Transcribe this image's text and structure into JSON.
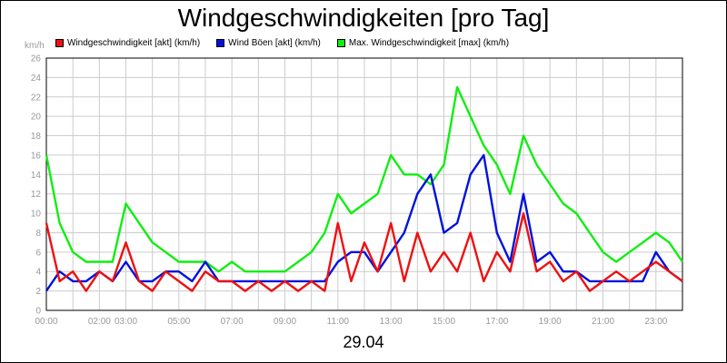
{
  "title": "Windgeschwindigkeiten [pro Tag]",
  "date_label": "29.04",
  "colors": {
    "current": "#ee1111",
    "gust": "#0011dd",
    "max": "#11ee11",
    "grid": "#cccccc",
    "axis_text": "#999999"
  },
  "chart_data": {
    "type": "line",
    "title": "Windgeschwindigkeiten [pro Tag]",
    "ylabel": "km/h",
    "xlabel": "29.04",
    "ylim": [
      0,
      26
    ],
    "xlim_hours": [
      0,
      24
    ],
    "y_ticks": [
      "0",
      "2",
      "4",
      "6",
      "8",
      "10",
      "12",
      "14",
      "16",
      "18",
      "20",
      "22",
      "24",
      "26"
    ],
    "x_ticks": [
      {
        "label": "00:00",
        "hour": 0
      },
      {
        "label": "02:00",
        "hour": 2
      },
      {
        "label": "03:00",
        "hour": 3
      },
      {
        "label": "05:00",
        "hour": 5
      },
      {
        "label": "07:00",
        "hour": 7
      },
      {
        "label": "09:00",
        "hour": 9
      },
      {
        "label": "11:00",
        "hour": 11
      },
      {
        "label": "13:00",
        "hour": 13
      },
      {
        "label": "15:00",
        "hour": 15
      },
      {
        "label": "17:00",
        "hour": 17
      },
      {
        "label": "19:00",
        "hour": 19
      },
      {
        "label": "21:00",
        "hour": 21
      },
      {
        "label": "23:00",
        "hour": 23
      }
    ],
    "grid": true,
    "legend_position": "top",
    "x_hours": [
      0,
      0.5,
      1,
      1.5,
      2,
      2.5,
      3,
      3.5,
      4,
      4.5,
      5,
      5.5,
      6,
      6.5,
      7,
      7.5,
      8,
      8.5,
      9,
      9.5,
      10,
      10.5,
      11,
      11.5,
      12,
      12.5,
      13,
      13.5,
      14,
      14.5,
      15,
      15.5,
      16,
      16.5,
      17,
      17.5,
      18,
      18.5,
      19,
      19.5,
      20,
      20.5,
      21,
      21.5,
      22,
      22.5,
      23,
      23.5,
      24
    ],
    "series": [
      {
        "name": "Windgeschwindigkeit [akt] (km/h)",
        "color": "#ee1111",
        "values": [
          9,
          3,
          4,
          2,
          4,
          3,
          7,
          3,
          2,
          4,
          3,
          2,
          4,
          3,
          3,
          2,
          3,
          2,
          3,
          2,
          3,
          2,
          9,
          3,
          7,
          4,
          9,
          3,
          8,
          4,
          6,
          4,
          8,
          3,
          6,
          4,
          10,
          4,
          5,
          3,
          4,
          2,
          3,
          4,
          3,
          4,
          5,
          4,
          3
        ]
      },
      {
        "name": "Wind Böen [akt] (km/h)",
        "color": "#0011dd",
        "values": [
          2,
          4,
          3,
          3,
          4,
          3,
          5,
          3,
          3,
          4,
          4,
          3,
          5,
          3,
          3,
          3,
          3,
          3,
          3,
          3,
          3,
          3,
          5,
          6,
          6,
          4,
          6,
          8,
          12,
          14,
          8,
          9,
          14,
          16,
          8,
          5,
          12,
          5,
          6,
          4,
          4,
          3,
          3,
          3,
          3,
          3,
          6,
          4,
          3
        ]
      },
      {
        "name": "Max. Windgeschwindigkeit [max] (km/h)",
        "color": "#11ee11",
        "values": [
          16,
          9,
          6,
          5,
          5,
          5,
          11,
          9,
          7,
          6,
          5,
          5,
          5,
          4,
          5,
          4,
          4,
          4,
          4,
          5,
          6,
          8,
          12,
          10,
          11,
          12,
          16,
          14,
          14,
          13,
          15,
          23,
          20,
          17,
          15,
          12,
          18,
          15,
          13,
          11,
          10,
          8,
          6,
          5,
          6,
          7,
          8,
          7,
          5
        ]
      }
    ]
  }
}
